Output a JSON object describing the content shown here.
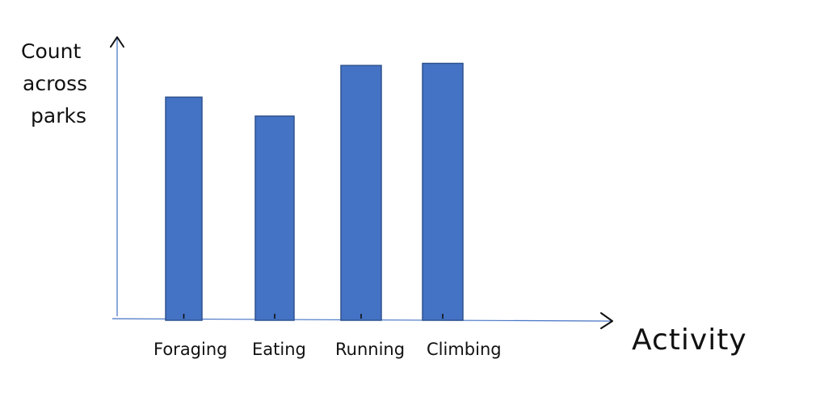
{
  "chart_data": {
    "type": "bar",
    "categories": [
      "Foraging",
      "Eating",
      "Running",
      "Climbing"
    ],
    "values": [
      10.5,
      9.6,
      12.0,
      12.1
    ],
    "xlabel": "Activity",
    "ylabel": "Count across parks",
    "ylabel_lines": [
      "Count",
      "across",
      "parks"
    ],
    "ylim": [
      0,
      13
    ],
    "grid": false,
    "legend": "none",
    "bar_color": "#4472C4",
    "bar_edge_color": "#2F528F",
    "axis_color": "#4472C4"
  }
}
